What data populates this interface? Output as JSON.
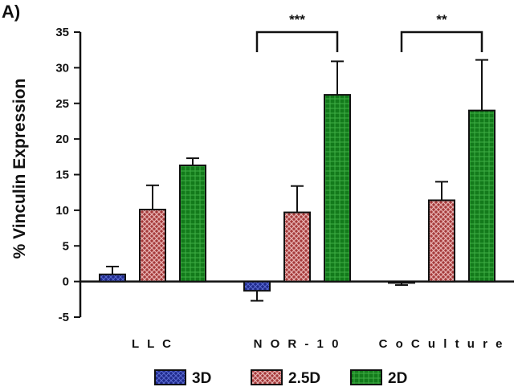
{
  "panel_label": "A)",
  "colors": {
    "3D": "#1f2a8c",
    "2.5D": "#a53a3a",
    "2D": "#137a1b",
    "axis": "#111111"
  },
  "chart_data": {
    "type": "bar",
    "categories": [
      "L L C",
      "N O R - 1 0",
      "C o  C u l t u r e"
    ],
    "ylabel": "% Vinculin Expression",
    "xlabel": "",
    "title": "",
    "ylim": [
      -5,
      35
    ],
    "yticks": [
      -5,
      0,
      5,
      10,
      15,
      20,
      25,
      30,
      35
    ],
    "legend_position": "bottom",
    "grid": false,
    "series": [
      {
        "name": "3D",
        "values": [
          1.0,
          -1.3,
          -0.2
        ],
        "errors": [
          1.1,
          1.4,
          0.3
        ]
      },
      {
        "name": "2.5D",
        "values": [
          10.1,
          9.7,
          11.4
        ],
        "errors": [
          3.4,
          3.7,
          2.6
        ]
      },
      {
        "name": "2D",
        "values": [
          16.3,
          26.2,
          24.0
        ],
        "errors": [
          1.0,
          4.7,
          7.1
        ]
      }
    ],
    "significance": [
      {
        "category": "N O R - 1 0",
        "text": "***",
        "between": [
          "3D",
          "2D"
        ]
      },
      {
        "category": "C o  C u l t u r e",
        "text": "**",
        "between": [
          "3D",
          "2D"
        ]
      }
    ]
  }
}
